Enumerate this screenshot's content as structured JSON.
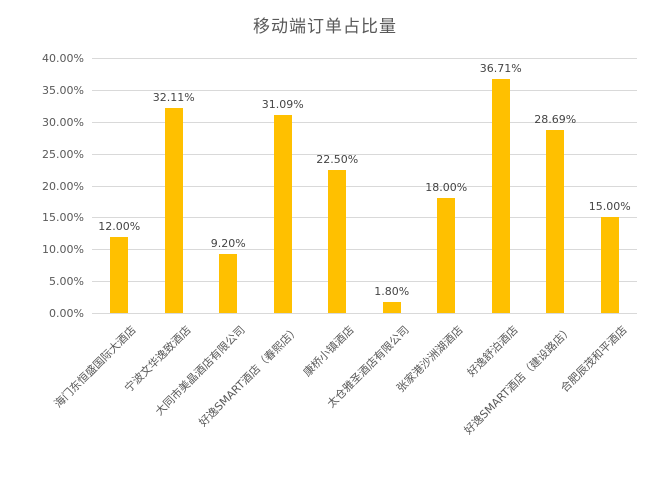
{
  "chart_data": {
    "type": "bar",
    "title": "移动端订单占比量",
    "categories": [
      "海门东恒盛国际大酒店",
      "宁波文华逸致酒店",
      "大同市美晶酒店有限公司",
      "好逸SMART酒店（春熙店）",
      "康桥小镇酒店",
      "太仓雅圣酒店有限公司",
      "张家港沙洲湖酒店",
      "好逸舒泊酒店",
      "好逸SMART酒店（建设路店）",
      "合肥辰茂和平酒店"
    ],
    "values": [
      12.0,
      32.11,
      9.2,
      31.09,
      22.5,
      1.8,
      18.0,
      36.71,
      28.69,
      15.0
    ],
    "data_labels": [
      "12.00%",
      "32.11%",
      "9.20%",
      "31.09%",
      "22.50%",
      "1.80%",
      "18.00%",
      "36.71%",
      "28.69%",
      "15.00%"
    ],
    "xlabel": "",
    "ylabel": "",
    "ylim": [
      0,
      40
    ],
    "ytick_step": 5,
    "ytick_labels": [
      "0.00%",
      "5.00%",
      "10.00%",
      "15.00%",
      "20.00%",
      "25.00%",
      "30.00%",
      "35.00%",
      "40.00%"
    ],
    "grid": true,
    "legend": "none",
    "bar_color": "#ffc000",
    "gridline_color": "#d9d9d9",
    "text_color": "#595959"
  }
}
